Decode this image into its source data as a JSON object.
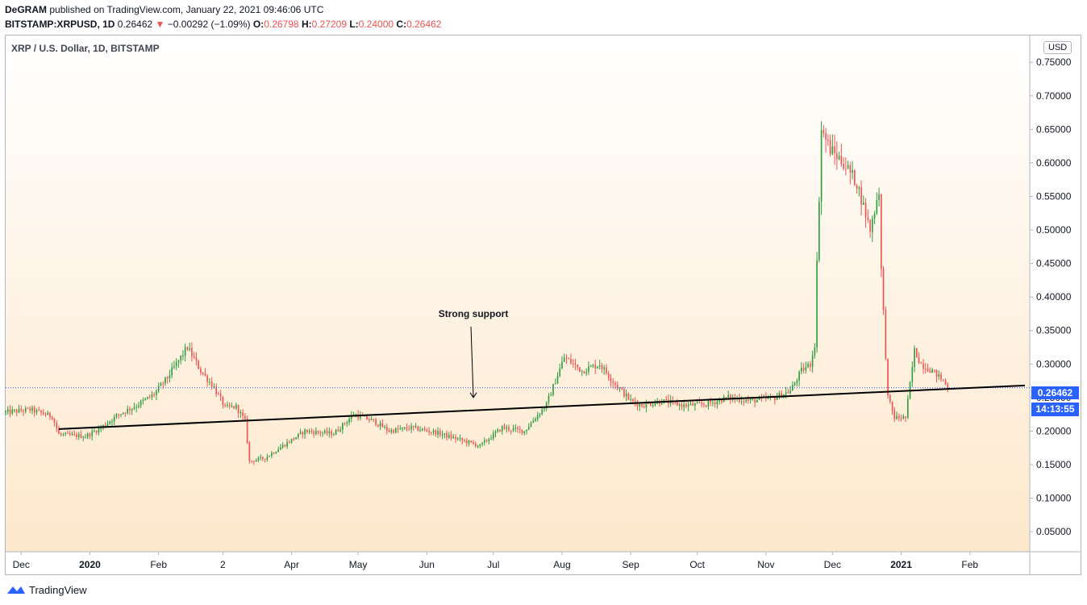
{
  "header": {
    "publisher": "DeGRAM",
    "published_text": "published on TradingView.com, January 22, 2021 09:46:06 UTC",
    "ticker": "BITSTAMP:XRPUSD, 1D",
    "last": "0.26462",
    "change": "−0.00292 (−1.09%)",
    "o_label": "O:",
    "o_val": "0.26798",
    "h_label": "H:",
    "h_val": "0.27209",
    "l_label": "L:",
    "l_val": "0.24000",
    "c_label": "C:",
    "c_val": "0.26462",
    "down_arrow": "▼"
  },
  "symbol_title": "XRP / U.S. Dollar, 1D, BITSTAMP",
  "currency_button": "USD",
  "price_tag": "0.26462",
  "countdown_tag": "14:13:55",
  "annotation": "Strong support",
  "footer_brand": "TradingView",
  "colors": {
    "up": "#26a69a",
    "up_candle": "#2e9e3f",
    "down": "#ef5350",
    "accent": "#2962ff",
    "bg_top": "#ffffff",
    "bg_bottom": "#fde8cc"
  },
  "chart_data": {
    "type": "candlestick",
    "title": "XRP / U.S. Dollar, 1D, BITSTAMP",
    "y_ticks": [
      "0.75000",
      "0.70000",
      "0.65000",
      "0.60000",
      "0.55000",
      "0.50000",
      "0.45000",
      "0.40000",
      "0.35000",
      "0.30000",
      "0.25000",
      "0.20000",
      "0.15000",
      "0.10000",
      "0.05000"
    ],
    "ylim": [
      0.02,
      0.79
    ],
    "x_ticks": [
      "Dec",
      "2020",
      "Feb",
      "2",
      "Apr",
      "May",
      "Jun",
      "Jul",
      "Aug",
      "Sep",
      "Oct",
      "Nov",
      "Dec",
      "2021",
      "Feb"
    ],
    "x_tick_dates": [
      "2019-12-01",
      "2020-01-01",
      "2020-02-01",
      "2020-03-01",
      "2020-04-01",
      "2020-05-01",
      "2020-06-01",
      "2020-07-01",
      "2020-08-01",
      "2020-09-01",
      "2020-10-01",
      "2020-11-01",
      "2020-12-01",
      "2021-01-01",
      "2021-02-01"
    ],
    "x_start": "2019-11-24",
    "x_end": "2021-02-28",
    "current_price": 0.26462,
    "support_line": {
      "from": {
        "date": "2019-12-18",
        "price": 0.203
      },
      "to": {
        "date": "2021-02-28",
        "price": 0.268
      }
    },
    "annotation": {
      "text": "Strong support",
      "date": "2020-06-22",
      "price": 0.25
    },
    "closes": {
      "x": [
        "2019-11-24",
        "2019-12-05",
        "2019-12-15",
        "2019-12-18",
        "2019-12-30",
        "2020-01-06",
        "2020-01-14",
        "2020-01-22",
        "2020-01-30",
        "2020-02-05",
        "2020-02-14",
        "2020-02-20",
        "2020-02-26",
        "2020-03-02",
        "2020-03-07",
        "2020-03-11",
        "2020-03-13",
        "2020-03-20",
        "2020-03-28",
        "2020-04-07",
        "2020-04-20",
        "2020-04-29",
        "2020-05-08",
        "2020-05-15",
        "2020-05-25",
        "2020-06-05",
        "2020-06-15",
        "2020-06-25",
        "2020-07-05",
        "2020-07-15",
        "2020-07-25",
        "2020-08-02",
        "2020-08-10",
        "2020-08-18",
        "2020-08-25",
        "2020-09-01",
        "2020-09-06",
        "2020-09-15",
        "2020-09-25",
        "2020-10-05",
        "2020-10-15",
        "2020-10-25",
        "2020-11-05",
        "2020-11-12",
        "2020-11-17",
        "2020-11-21",
        "2020-11-23",
        "2020-11-24",
        "2020-11-26",
        "2020-11-30",
        "2020-12-06",
        "2020-12-12",
        "2020-12-18",
        "2020-12-22",
        "2020-12-23",
        "2020-12-26",
        "2020-12-29",
        "2021-01-03",
        "2021-01-07",
        "2021-01-10",
        "2021-01-15",
        "2021-01-20",
        "2021-01-22"
      ],
      "y": [
        0.228,
        0.232,
        0.222,
        0.195,
        0.192,
        0.205,
        0.225,
        0.238,
        0.255,
        0.28,
        0.325,
        0.29,
        0.265,
        0.235,
        0.236,
        0.215,
        0.155,
        0.16,
        0.178,
        0.2,
        0.196,
        0.225,
        0.215,
        0.2,
        0.205,
        0.198,
        0.188,
        0.178,
        0.205,
        0.2,
        0.24,
        0.31,
        0.29,
        0.3,
        0.27,
        0.245,
        0.238,
        0.245,
        0.238,
        0.24,
        0.25,
        0.245,
        0.25,
        0.26,
        0.29,
        0.3,
        0.33,
        0.45,
        0.65,
        0.62,
        0.6,
        0.57,
        0.5,
        0.56,
        0.44,
        0.25,
        0.22,
        0.22,
        0.32,
        0.3,
        0.29,
        0.275,
        0.26462
      ]
    }
  }
}
